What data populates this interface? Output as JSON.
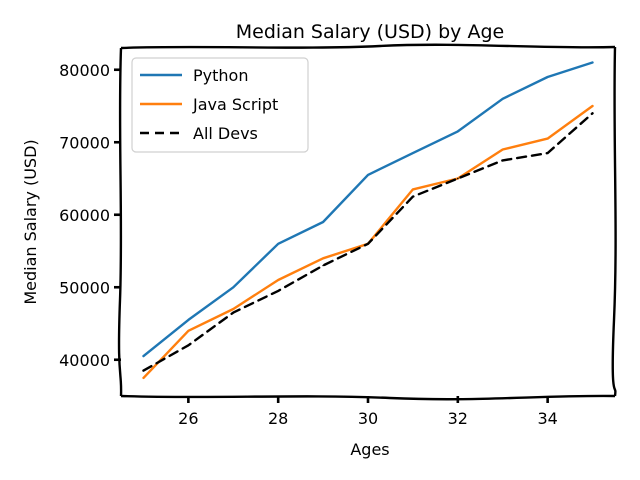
{
  "chart_data": {
    "type": "line",
    "title": "Median Salary (USD) by Age",
    "xlabel": "Ages",
    "ylabel": "Median Salary (USD)",
    "x": [
      25,
      26,
      27,
      28,
      29,
      30,
      31,
      32,
      33,
      34,
      35
    ],
    "xlim": [
      24.5,
      35.5
    ],
    "ylim": [
      35000,
      83000
    ],
    "xticks": [
      26,
      28,
      30,
      32,
      34
    ],
    "yticks": [
      40000,
      50000,
      60000,
      70000,
      80000
    ],
    "grid": false,
    "legend_placement": "top-left",
    "series": [
      {
        "name": "Python",
        "color": "#1f77b4",
        "dash": "solid",
        "values": [
          40500,
          45500,
          50000,
          56000,
          59000,
          65500,
          68500,
          71500,
          76000,
          79000,
          81000
        ]
      },
      {
        "name": "Java Script",
        "color": "#ff7f0e",
        "dash": "solid",
        "values": [
          37500,
          44000,
          47000,
          51000,
          54000,
          56000,
          63500,
          65000,
          69000,
          70500,
          75000
        ]
      },
      {
        "name": "All Devs",
        "color": "#000000",
        "dash": "dashed",
        "values": [
          38500,
          42000,
          46500,
          49500,
          53000,
          56000,
          62500,
          65000,
          67500,
          68500,
          74000
        ]
      }
    ]
  }
}
